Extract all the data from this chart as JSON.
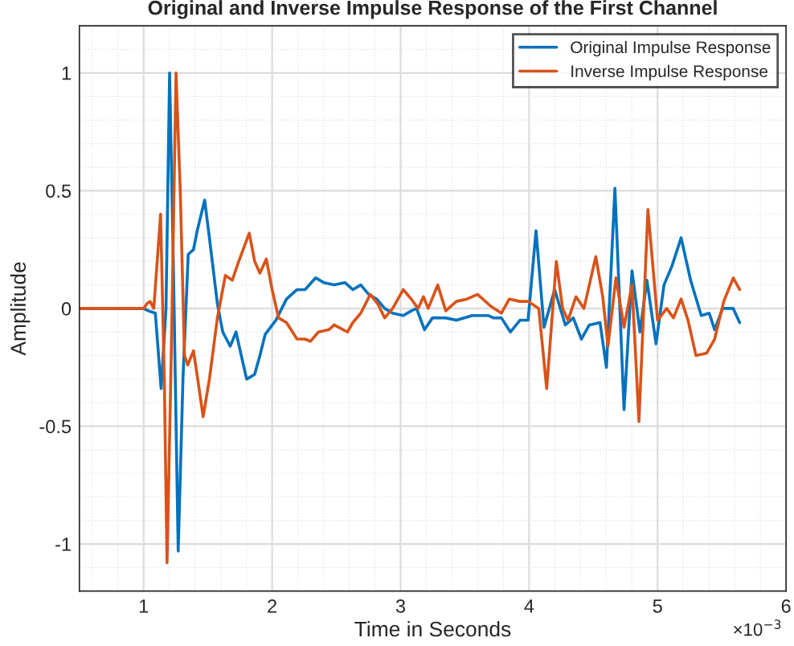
{
  "chart_data": {
    "type": "line",
    "title": "Original and Inverse Impulse Response of the First Channel",
    "xlabel": "Time in Seconds",
    "ylabel": "Amplitude",
    "xlim": [
      0.5,
      6
    ],
    "xticks": [
      1,
      2,
      3,
      4,
      5,
      6
    ],
    "ylim": [
      -1.2,
      1.2
    ],
    "yticks": [
      -1,
      -0.5,
      0,
      0.5,
      1
    ],
    "grid": true,
    "legend": "top right",
    "annotations": [
      "×10$^{−3}$"
    ],
    "series": [
      {
        "name": "Original Impulse Response",
        "color": "#0072bd",
        "x": [
          0.5,
          1.0,
          1.037,
          1.091,
          1.136,
          1.174,
          1.202,
          1.231,
          1.269,
          1.306,
          1.347,
          1.388,
          1.417,
          1.475,
          1.512,
          1.574,
          1.616,
          1.674,
          1.719,
          1.76,
          1.802,
          1.864,
          1.905,
          1.946,
          2.029,
          2.112,
          2.194,
          2.256,
          2.339,
          2.401,
          2.483,
          2.566,
          2.628,
          2.69,
          2.752,
          2.814,
          2.876,
          2.938,
          3.021,
          3.083,
          3.124,
          3.186,
          3.248,
          3.351,
          3.434,
          3.558,
          3.682,
          3.722,
          3.784,
          3.855,
          3.929,
          3.992,
          4.054,
          4.116,
          4.199,
          4.282,
          4.344,
          4.407,
          4.469,
          4.552,
          4.602,
          4.668,
          4.739,
          4.801,
          4.863,
          4.917,
          4.988,
          5.05,
          5.112,
          5.183,
          5.257,
          5.34,
          5.402,
          5.444,
          5.506,
          5.589,
          5.639
        ],
        "values": [
          0,
          0,
          -0.01,
          -0.02,
          -0.34,
          0,
          1.0,
          0.2,
          -1.03,
          -0.3,
          0.23,
          0.25,
          0.33,
          0.46,
          0.3,
          0.02,
          -0.1,
          -0.16,
          -0.1,
          -0.2,
          -0.3,
          -0.28,
          -0.2,
          -0.11,
          -0.05,
          0.04,
          0.08,
          0.08,
          0.13,
          0.11,
          0.1,
          0.11,
          0.08,
          0.1,
          0.06,
          0.04,
          0.0,
          -0.02,
          -0.03,
          -0.01,
          0.0,
          -0.09,
          -0.04,
          -0.04,
          -0.05,
          -0.03,
          -0.03,
          -0.04,
          -0.04,
          -0.1,
          -0.05,
          -0.05,
          0.33,
          -0.08,
          0.08,
          -0.07,
          -0.04,
          -0.13,
          -0.07,
          -0.06,
          -0.25,
          0.51,
          -0.43,
          0.16,
          -0.1,
          0.12,
          -0.15,
          0.1,
          0.18,
          0.3,
          0.12,
          -0.03,
          -0.02,
          -0.09,
          0.0,
          0.0,
          -0.06
        ]
      },
      {
        "name": "Inverse Impulse Response",
        "color": "#d95319",
        "x": [
          0.5,
          1.0,
          1.025,
          1.05,
          1.079,
          1.132,
          1.161,
          1.182,
          1.215,
          1.252,
          1.285,
          1.318,
          1.343,
          1.388,
          1.421,
          1.463,
          1.512,
          1.574,
          1.636,
          1.69,
          1.74,
          1.822,
          1.864,
          1.905,
          1.955,
          2.0,
          2.05,
          2.112,
          2.194,
          2.256,
          2.298,
          2.36,
          2.442,
          2.483,
          2.587,
          2.628,
          2.69,
          2.764,
          2.822,
          2.876,
          2.938,
          3.021,
          3.083,
          3.136,
          3.178,
          3.215,
          3.289,
          3.351,
          3.434,
          3.517,
          3.599,
          3.701,
          3.784,
          3.846,
          3.929,
          3.992,
          4.075,
          4.137,
          4.212,
          4.261,
          4.303,
          4.365,
          4.427,
          4.519,
          4.573,
          4.614,
          4.676,
          4.739,
          4.801,
          4.855,
          4.925,
          5.0,
          5.071,
          5.124,
          5.183,
          5.237,
          5.299,
          5.382,
          5.444,
          5.515,
          5.589,
          5.639
        ],
        "values": [
          0,
          0,
          0.02,
          0.03,
          0.0,
          0.4,
          -0.3,
          -1.08,
          -0.2,
          1.0,
          0.5,
          -0.2,
          -0.24,
          -0.18,
          -0.3,
          -0.46,
          -0.3,
          -0.04,
          0.14,
          0.12,
          0.2,
          0.32,
          0.2,
          0.15,
          0.21,
          0.08,
          -0.04,
          -0.06,
          -0.13,
          -0.13,
          -0.14,
          -0.1,
          -0.09,
          -0.07,
          -0.1,
          -0.06,
          -0.02,
          0.06,
          0.02,
          -0.04,
          0.0,
          0.08,
          0.04,
          0.0,
          0.05,
          0.0,
          0.1,
          -0.01,
          0.03,
          0.04,
          0.06,
          0.01,
          -0.02,
          0.04,
          0.03,
          0.03,
          0.0,
          -0.34,
          0.2,
          0.0,
          -0.05,
          0.05,
          0.0,
          0.22,
          0.05,
          -0.16,
          0.13,
          -0.08,
          0.1,
          -0.48,
          0.42,
          -0.05,
          0.0,
          -0.04,
          0.04,
          -0.05,
          -0.2,
          -0.19,
          -0.13,
          0.03,
          0.13,
          0.08
        ]
      }
    ]
  }
}
